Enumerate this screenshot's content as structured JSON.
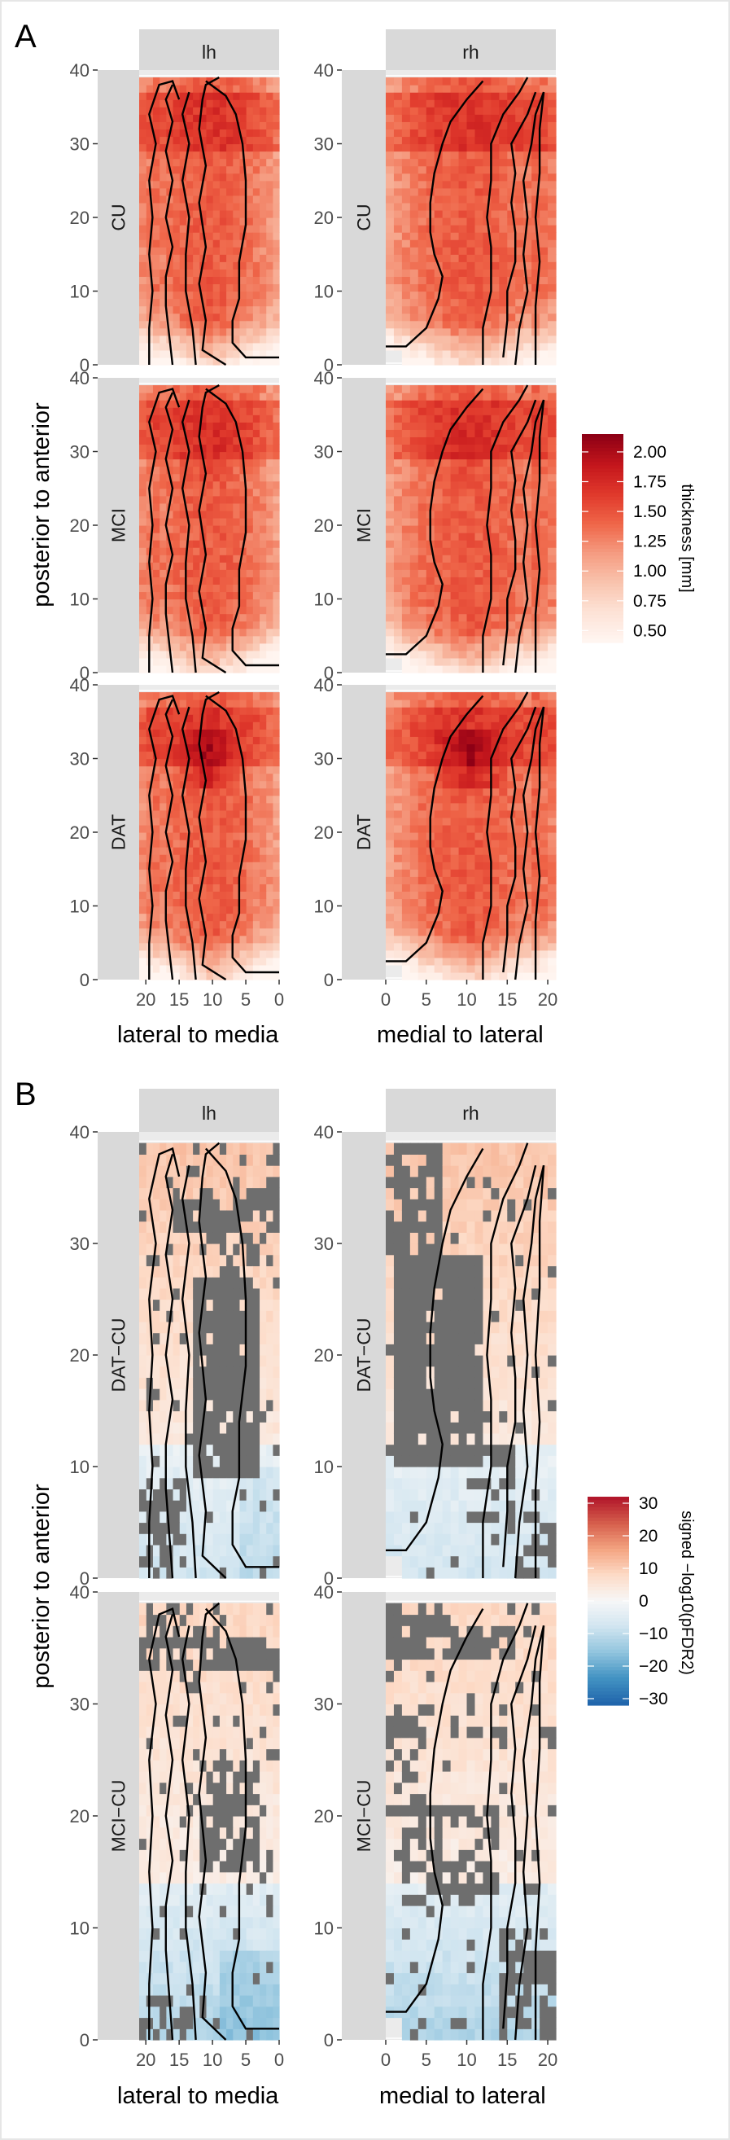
{
  "figure": {
    "panels": [
      {
        "letter": "A",
        "hemispheres": [
          "lh",
          "rh"
        ],
        "groups": [
          "CU",
          "MCI",
          "DAT"
        ],
        "y_label": "posterior to anterior",
        "x_labels": [
          "lateral to media",
          "medial to lateral"
        ],
        "y_ticks": [
          "0",
          "10",
          "20",
          "30",
          "40"
        ],
        "x_ticks_lh": [
          "20",
          "15",
          "10",
          "5",
          "0"
        ],
        "x_ticks_rh": [
          "0",
          "5",
          "10",
          "15",
          "20"
        ],
        "legend": {
          "title": "thickness [mm]",
          "ticks": [
            "2.00",
            "1.75",
            "1.50",
            "1.25",
            "1.00",
            "0.75",
            "0.50"
          ],
          "colors": [
            "#8e0015",
            "#c4161c",
            "#e0392c",
            "#ef6548",
            "#f59b80",
            "#f9c3ad",
            "#fde2d6",
            "#fff5f0"
          ]
        }
      },
      {
        "letter": "B",
        "hemispheres": [
          "lh",
          "rh"
        ],
        "groups": [
          "DAT−CU",
          "MCI−CU"
        ],
        "y_label": "posterior to anterior",
        "x_labels": [
          "lateral to media",
          "medial to lateral"
        ],
        "y_ticks": [
          "0",
          "10",
          "20",
          "30",
          "40"
        ],
        "x_ticks_lh": [
          "20",
          "15",
          "10",
          "5",
          "0"
        ],
        "x_ticks_rh": [
          "0",
          "5",
          "10",
          "15",
          "20"
        ],
        "legend": {
          "title": "signed −log10(pFDR2)",
          "ticks": [
            "30",
            "20",
            "10",
            "0",
            "−10",
            "−20",
            "−30"
          ],
          "colors": [
            "#b2182b",
            "#d6604d",
            "#f4a582",
            "#fddbc7",
            "#f7f7f7",
            "#d1e5f0",
            "#92c5de",
            "#4393c3",
            "#2166ac"
          ]
        }
      }
    ]
  },
  "chart_data": [
    {
      "type": "heatmap",
      "panel": "A",
      "title": "",
      "facet_rows": [
        "CU",
        "MCI",
        "DAT"
      ],
      "facet_cols": [
        "lh",
        "rh"
      ],
      "xlabel_lh": "lateral to media",
      "xlabel_rh": "medial to lateral",
      "ylabel": "posterior to anterior",
      "xlim_lh": [
        21,
        0
      ],
      "xlim_rh": [
        0,
        21
      ],
      "ylim": [
        0,
        40
      ],
      "fill_variable": "thickness [mm]",
      "fill_range": [
        0.4,
        2.15
      ],
      "peak_thickness_mm": {
        "CU": 1.7,
        "MCI": 1.75,
        "DAT": 2.0
      }
    },
    {
      "type": "heatmap",
      "panel": "B",
      "title": "",
      "facet_rows": [
        "DAT−CU",
        "MCI−CU"
      ],
      "facet_cols": [
        "lh",
        "rh"
      ],
      "xlabel_lh": "lateral to media",
      "xlabel_rh": "medial to lateral",
      "ylabel": "posterior to anterior",
      "xlim_lh": [
        21,
        0
      ],
      "xlim_rh": [
        0,
        21
      ],
      "ylim": [
        0,
        40
      ],
      "fill_variable": "signed −log10(pFDR2)",
      "fill_range": [
        -30,
        30
      ],
      "non_significant_color": "#6e6e6e"
    }
  ]
}
